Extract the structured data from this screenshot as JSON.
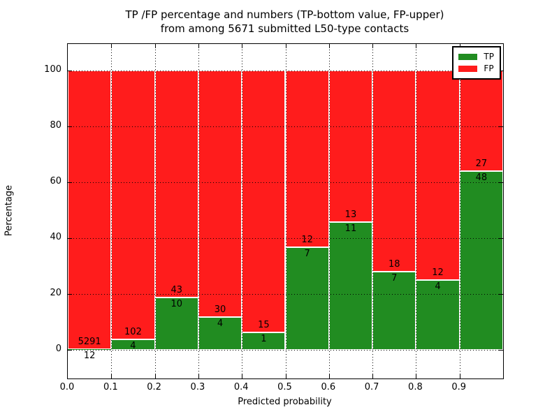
{
  "figure": {
    "title_line1": "TP /FP percentage and numbers (TP-bottom value, FP-upper)",
    "title_line2": "from among 5671 submitted L50-type contacts"
  },
  "chart_data": {
    "type": "bar",
    "stacked": true,
    "title": "TP /FP percentage and numbers (TP-bottom value, FP-upper)\nfrom among 5671 submitted L50-type contacts",
    "xlabel": "Predicted probability",
    "ylabel": "Percentage",
    "xlim": [
      0.0,
      1.0
    ],
    "ylim": [
      -10.25,
      109.5
    ],
    "grid": true,
    "xtick_labels": [
      "0.0",
      "0.1",
      "0.2",
      "0.3",
      "0.4",
      "0.5",
      "0.6",
      "0.7",
      "0.8",
      "0.9"
    ],
    "ytick_values": [
      0,
      20,
      40,
      60,
      80,
      100
    ],
    "legend_position": "upper right",
    "legend": [
      {
        "label": "TP",
        "color": "#218c21"
      },
      {
        "label": "FP",
        "color": "#ff1c1c"
      }
    ],
    "colors": {
      "tp": "#218c21",
      "fp": "#ff1c1c",
      "edge": "#ffffff"
    },
    "total_contacts": 5671,
    "bins": [
      {
        "x0": 0.0,
        "x1": 0.1,
        "tp": 12,
        "fp": 5291,
        "tp_pct": 0.23,
        "fp_pct": 99.77
      },
      {
        "x0": 0.1,
        "x1": 0.2,
        "tp": 4,
        "fp": 102,
        "tp_pct": 3.77,
        "fp_pct": 96.23
      },
      {
        "x0": 0.2,
        "x1": 0.3,
        "tp": 10,
        "fp": 43,
        "tp_pct": 18.87,
        "fp_pct": 81.13
      },
      {
        "x0": 0.3,
        "x1": 0.4,
        "tp": 4,
        "fp": 30,
        "tp_pct": 11.76,
        "fp_pct": 88.24
      },
      {
        "x0": 0.4,
        "x1": 0.5,
        "tp": 1,
        "fp": 15,
        "tp_pct": 6.25,
        "fp_pct": 93.75
      },
      {
        "x0": 0.5,
        "x1": 0.6,
        "tp": 7,
        "fp": 12,
        "tp_pct": 36.84,
        "fp_pct": 63.16
      },
      {
        "x0": 0.6,
        "x1": 0.7,
        "tp": 11,
        "fp": 13,
        "tp_pct": 45.83,
        "fp_pct": 54.17
      },
      {
        "x0": 0.7,
        "x1": 0.8,
        "tp": 7,
        "fp": 18,
        "tp_pct": 28.0,
        "fp_pct": 72.0
      },
      {
        "x0": 0.8,
        "x1": 0.9,
        "tp": 4,
        "fp": 12,
        "tp_pct": 25.0,
        "fp_pct": 75.0
      },
      {
        "x0": 0.9,
        "x1": 1.0,
        "tp": 48,
        "fp": 27,
        "tp_pct": 64.0,
        "fp_pct": 36.0
      }
    ]
  }
}
